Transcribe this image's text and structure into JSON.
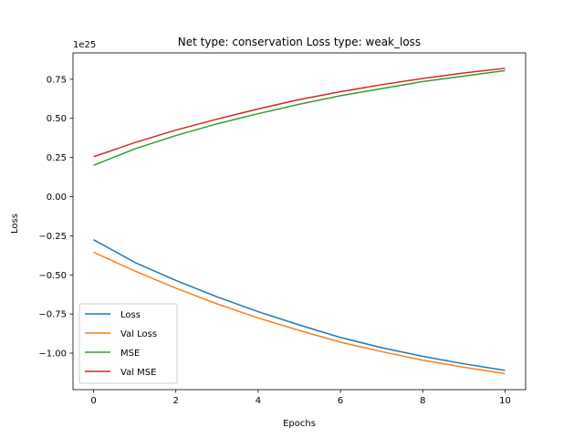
{
  "chart_data": {
    "type": "line",
    "title": "Net type: conservation Loss type: weak_loss",
    "xlabel": "Epochs",
    "ylabel": "Loss",
    "y_offset_label": "1e25",
    "x": [
      0,
      1,
      2,
      3,
      4,
      5,
      6,
      7,
      8,
      9,
      10
    ],
    "xlim": [
      -0.5,
      10.5
    ],
    "ylim": [
      -1.233,
      0.918
    ],
    "x_ticks": [
      0,
      2,
      4,
      6,
      8,
      10
    ],
    "y_ticks": [
      -1.0,
      -0.75,
      -0.5,
      -0.25,
      0.0,
      0.25,
      0.5,
      0.75
    ],
    "x_tick_labels": [
      "0",
      "2",
      "4",
      "6",
      "8",
      "10"
    ],
    "y_tick_labels": [
      "−1.00",
      "−0.75",
      "−0.50",
      "−0.25",
      "0.00",
      "0.25",
      "0.50",
      "0.75"
    ],
    "grid": false,
    "legend_position": "lower-left",
    "series": [
      {
        "name": "Loss",
        "color": "#1f77b4",
        "values": [
          -0.275,
          -0.42,
          -0.535,
          -0.64,
          -0.735,
          -0.82,
          -0.9,
          -0.965,
          -1.02,
          -1.068,
          -1.11
        ]
      },
      {
        "name": "Val Loss",
        "color": "#ff7f0e",
        "values": [
          -0.355,
          -0.475,
          -0.585,
          -0.685,
          -0.775,
          -0.855,
          -0.93,
          -0.99,
          -1.045,
          -1.09,
          -1.13
        ]
      },
      {
        "name": "MSE",
        "color": "#2ca02c",
        "values": [
          0.2,
          0.305,
          0.39,
          0.465,
          0.53,
          0.59,
          0.645,
          0.69,
          0.735,
          0.77,
          0.805
        ]
      },
      {
        "name": "Val MSE",
        "color": "#d62728",
        "values": [
          0.255,
          0.345,
          0.425,
          0.495,
          0.56,
          0.62,
          0.67,
          0.715,
          0.755,
          0.79,
          0.82
        ]
      }
    ]
  }
}
